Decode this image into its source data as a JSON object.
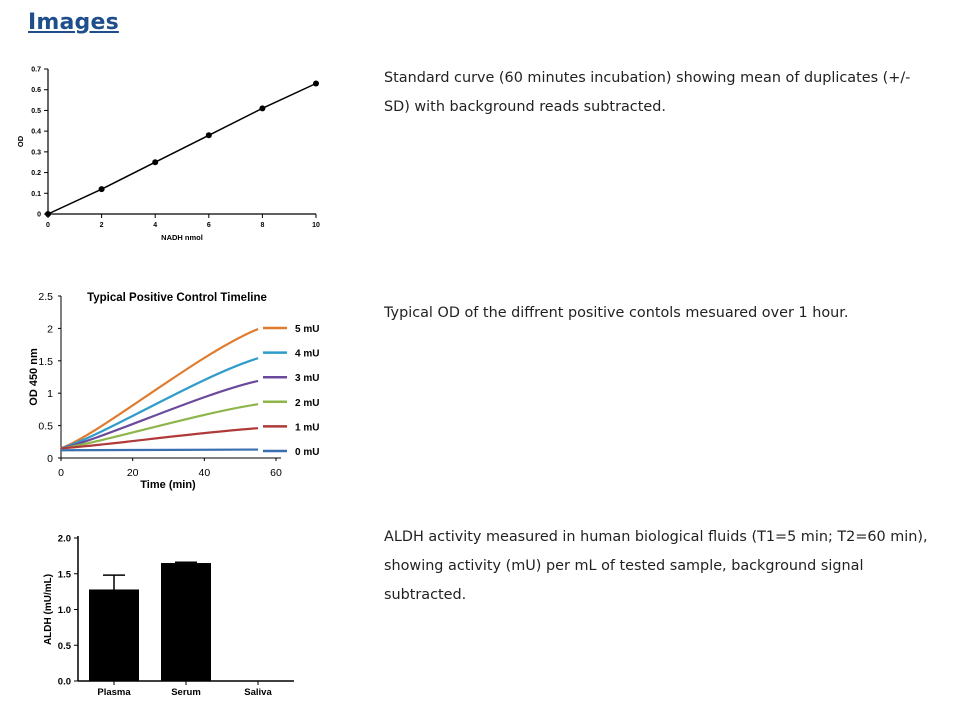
{
  "heading": "Images",
  "captions": [
    "Standard curve (60 minutes incubation) showing mean of duplicates (+/- SD) with background reads subtracted.",
    "Typical OD of the diffrent positive contols mesuared over 1 hour.",
    "ALDH activity measured in human biological fluids (T1=5 min; T2=60 min), showing activity (mU) per mL of tested sample, background signal subtracted."
  ],
  "chart_data": [
    {
      "type": "line",
      "title": "",
      "xlabel": "NADH nmol",
      "ylabel": "OD",
      "xlim": [
        0,
        10
      ],
      "ylim": [
        0,
        0.7
      ],
      "x_ticks": [
        "0",
        "2",
        "4",
        "6",
        "8",
        "10"
      ],
      "y_ticks": [
        "0",
        "0.1",
        "0.2",
        "0.3",
        "0.4",
        "0.5",
        "0.6",
        "0.7"
      ],
      "x": [
        0,
        2,
        4,
        6,
        8,
        10
      ],
      "values": [
        0,
        0.12,
        0.25,
        0.38,
        0.51,
        0.63
      ],
      "grid": false
    },
    {
      "type": "line",
      "title": "Typical Positive Control Timeline",
      "xlabel": "Time (min)",
      "ylabel": "OD  450 nm",
      "xlim": [
        0,
        60
      ],
      "ylim": [
        0,
        2.5
      ],
      "x_ticks": [
        "0",
        "20",
        "40",
        "60"
      ],
      "y_ticks": [
        "0",
        "0.5",
        "1",
        "1.5",
        "2",
        "2.5"
      ],
      "legend_position": "right",
      "x": [
        0,
        55
      ],
      "series": [
        {
          "name": "5 mU",
          "color": "#e07b2e",
          "values": [
            0.15,
            1.99
          ]
        },
        {
          "name": "4 mU",
          "color": "#2f9cc9",
          "values": [
            0.15,
            1.54
          ]
        },
        {
          "name": "3 mU",
          "color": "#6a4a9c",
          "values": [
            0.15,
            1.19
          ]
        },
        {
          "name": "2 mU",
          "color": "#8db54a",
          "values": [
            0.15,
            0.83
          ]
        },
        {
          "name": "1 mU",
          "color": "#b03a3a",
          "values": [
            0.15,
            0.46
          ]
        },
        {
          "name": "0 mU",
          "color": "#3a6fb0",
          "values": [
            0.12,
            0.13
          ]
        }
      ],
      "grid": false
    },
    {
      "type": "bar",
      "title": "",
      "xlabel": "",
      "ylabel": "ALDH (mU/mL)",
      "ylim": [
        0,
        2.0
      ],
      "y_ticks": [
        "0.0",
        "0.5",
        "1.0",
        "1.5",
        "2.0"
      ],
      "categories": [
        "Plasma",
        "Serum",
        "Saliva"
      ],
      "values": [
        1.28,
        1.65,
        0
      ],
      "error": [
        0.2,
        0.01,
        0
      ],
      "bar_color": "#000000",
      "grid": false
    }
  ]
}
